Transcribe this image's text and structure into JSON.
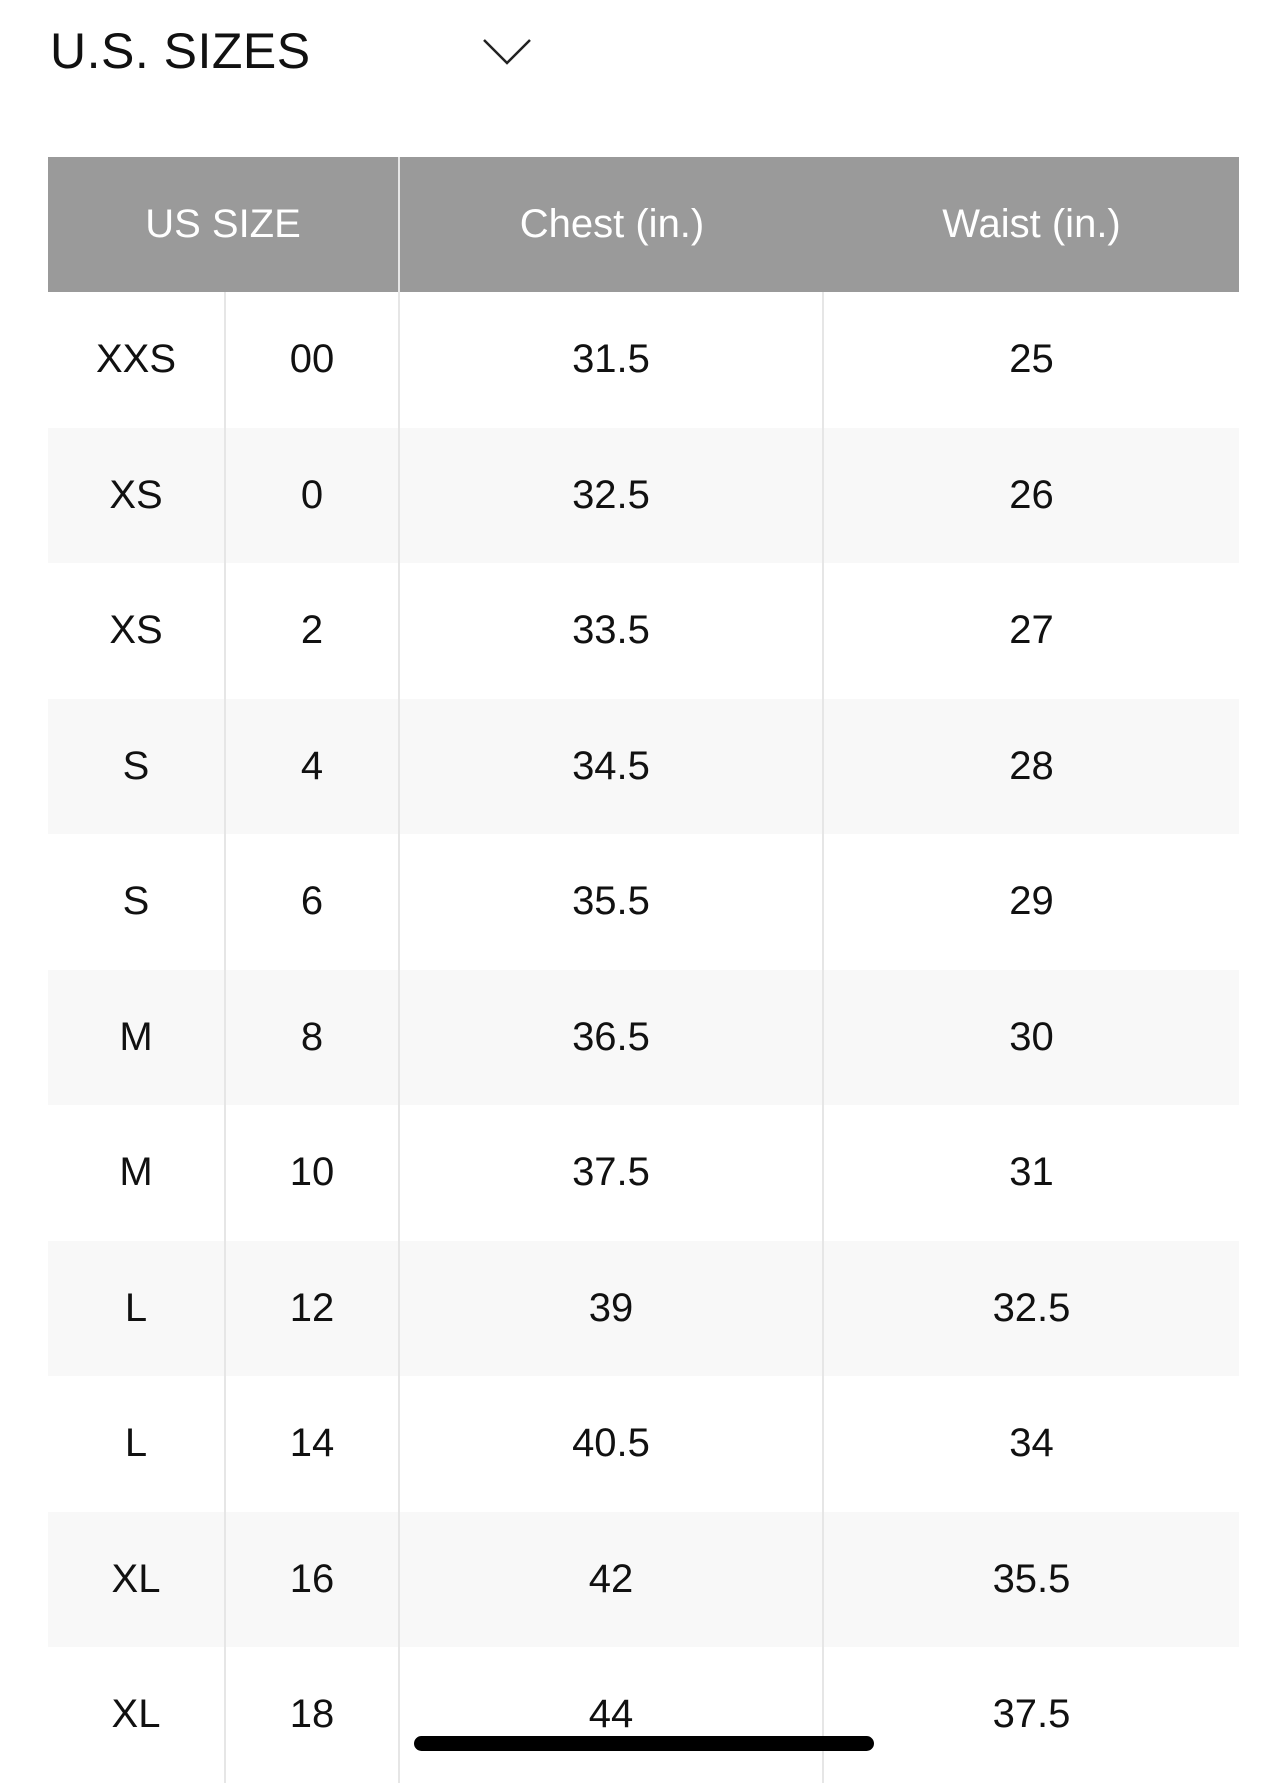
{
  "header": {
    "title": "U.S. SIZES",
    "dropdown_icon": "chevron-down-icon"
  },
  "table": {
    "columns": [
      "US SIZE",
      "Chest (in.)",
      "Waist (in.)"
    ],
    "rows": [
      [
        "XXS",
        "00",
        "31.5",
        "25"
      ],
      [
        "XS",
        "0",
        "32.5",
        "26"
      ],
      [
        "XS",
        "2",
        "33.5",
        "27"
      ],
      [
        "S",
        "4",
        "34.5",
        "28"
      ],
      [
        "S",
        "6",
        "35.5",
        "29"
      ],
      [
        "M",
        "8",
        "36.5",
        "30"
      ],
      [
        "M",
        "10",
        "37.5",
        "31"
      ],
      [
        "L",
        "12",
        "39",
        "32.5"
      ],
      [
        "L",
        "14",
        "40.5",
        "34"
      ],
      [
        "XL",
        "16",
        "42",
        "35.5"
      ],
      [
        "XL",
        "18",
        "44",
        "37.5"
      ]
    ]
  },
  "colors": {
    "header_bg": "#9a9a9a",
    "stripe": "#f8f8f8"
  }
}
